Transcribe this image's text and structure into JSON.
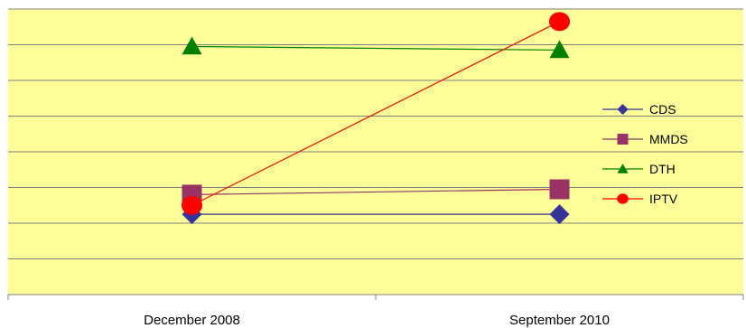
{
  "chart_data": {
    "type": "line",
    "categories": [
      "December 2008",
      "September 2010"
    ],
    "ylim": [
      0,
      8
    ],
    "grid": true,
    "legend_position": "right",
    "plot_background": "#ffff99",
    "gridline_color": "#808080",
    "series": [
      {
        "name": "CDS",
        "values": [
          2.25,
          2.25
        ],
        "color": "#333399",
        "marker": "diamond"
      },
      {
        "name": "MMDS",
        "values": [
          2.8,
          2.95
        ],
        "color": "#993366",
        "marker": "square"
      },
      {
        "name": "DTH",
        "values": [
          6.95,
          6.85
        ],
        "color": "#008000",
        "marker": "triangle"
      },
      {
        "name": "IPTV",
        "values": [
          2.5,
          7.65
        ],
        "color": "#ff0000",
        "marker": "circle"
      }
    ]
  }
}
